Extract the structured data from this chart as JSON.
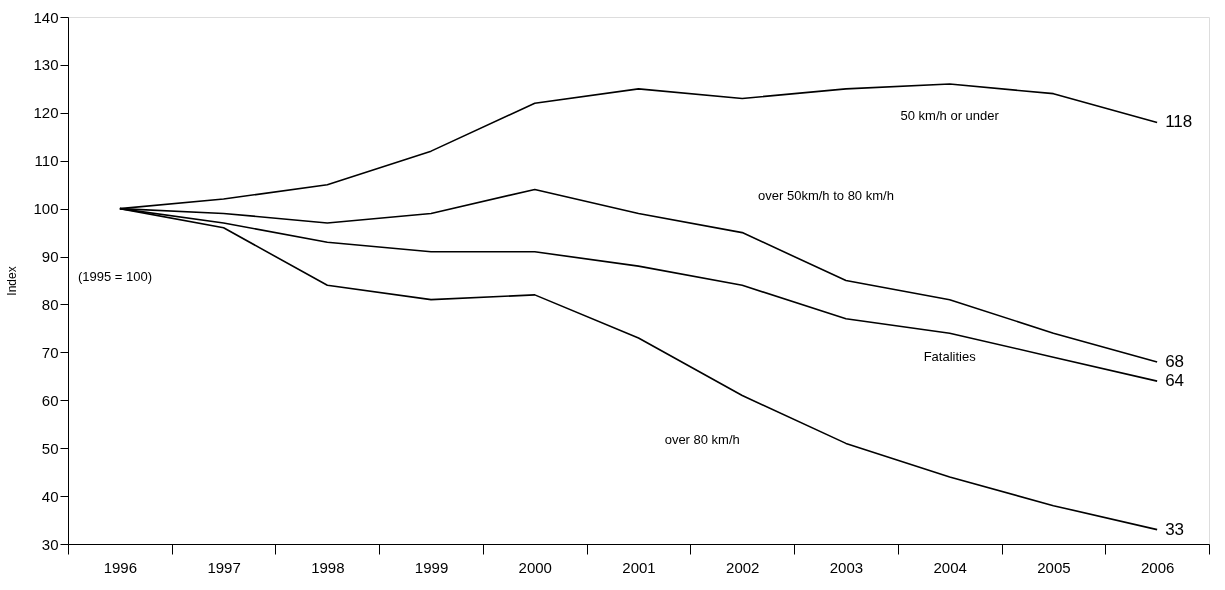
{
  "chart_data": {
    "type": "line",
    "ylabel": "Index",
    "categories": [
      "1996",
      "1997",
      "1998",
      "1999",
      "2000",
      "2001",
      "2002",
      "2003",
      "2004",
      "2005",
      "2006"
    ],
    "ylim": [
      30,
      140
    ],
    "yticks": [
      30,
      40,
      50,
      60,
      70,
      80,
      90,
      100,
      110,
      120,
      130,
      140
    ],
    "grid": false,
    "legend": false,
    "marker": "none",
    "line_style": "solid",
    "annotations": [
      "(1995 = 100)"
    ],
    "series": [
      {
        "name": "50 km/h or under",
        "color": "#000000",
        "values": [
          100,
          102,
          105,
          112,
          122,
          125,
          123,
          125,
          126,
          124,
          118
        ],
        "value_labels": [
          null,
          null,
          null,
          null,
          null,
          null,
          null,
          null,
          null,
          null,
          "118"
        ]
      },
      {
        "name": "over 50km/h to 80 km/h",
        "color": "#000000",
        "values": [
          100,
          99,
          97,
          99,
          104,
          99,
          95,
          85,
          81,
          74,
          68
        ],
        "value_labels": [
          null,
          null,
          null,
          null,
          null,
          null,
          null,
          null,
          null,
          null,
          "68"
        ]
      },
      {
        "name": "Fatalities",
        "color": "#000000",
        "values": [
          100,
          97,
          93,
          91,
          91,
          88,
          84,
          77,
          74,
          69,
          64
        ],
        "value_labels": [
          null,
          null,
          null,
          null,
          null,
          null,
          null,
          null,
          null,
          null,
          "64"
        ]
      },
      {
        "name": "over 80 km/h",
        "color": "#000000",
        "values": [
          100,
          96,
          84,
          81,
          82,
          73,
          61,
          51,
          44,
          38,
          33
        ],
        "value_labels": [
          null,
          null,
          null,
          null,
          null,
          null,
          null,
          null,
          null,
          null,
          "33"
        ]
      }
    ]
  }
}
